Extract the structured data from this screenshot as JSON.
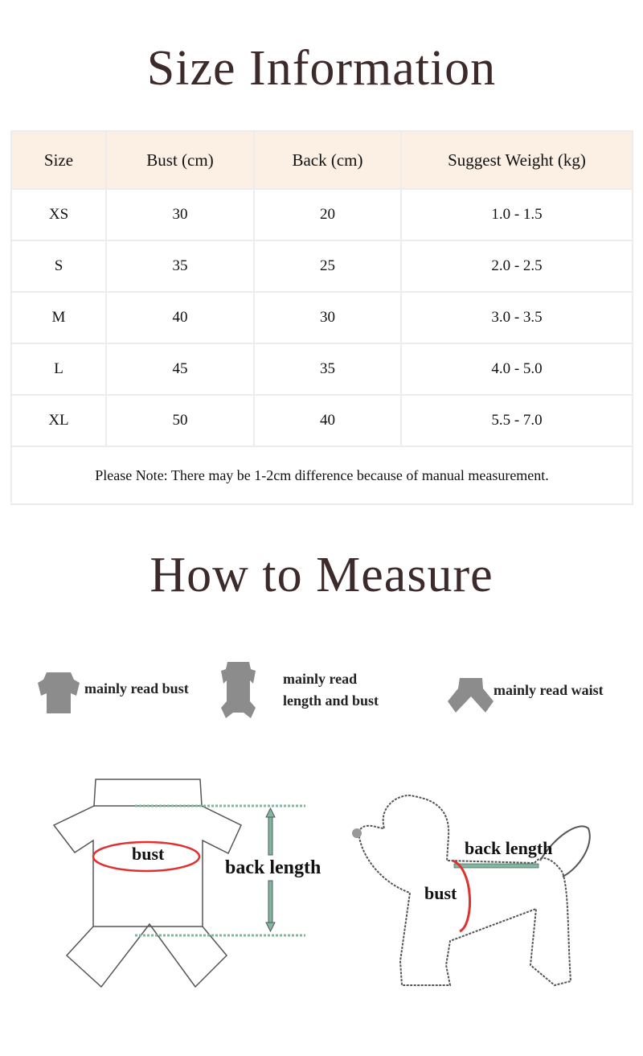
{
  "size_info": {
    "title": "Size Information",
    "headers": [
      "Size",
      "Bust (cm)",
      "Back (cm)",
      "Suggest Weight (kg)"
    ],
    "rows": [
      [
        "XS",
        "30",
        "20",
        "1.0 - 1.5"
      ],
      [
        "S",
        "35",
        "25",
        "2.0 - 2.5"
      ],
      [
        "M",
        "40",
        "30",
        "3.0 - 3.5"
      ],
      [
        "L",
        "45",
        "35",
        "4.0 - 5.0"
      ],
      [
        "XL",
        "50",
        "40",
        "5.5 - 7.0"
      ]
    ],
    "note": "Please Note: There may be 1-2cm difference because of manual measurement."
  },
  "how_to_measure": {
    "title": "How to Measure",
    "legend": [
      {
        "icon": "shirt-icon",
        "label": "mainly read bust"
      },
      {
        "icon": "jumpsuit-icon",
        "label_line1": "mainly read",
        "label_line2": "length and bust"
      },
      {
        "icon": "pants-icon",
        "label": "mainly read waist"
      }
    ],
    "garment_diagram": {
      "bust": "bust",
      "back_length": "back length"
    },
    "dog_diagram": {
      "bust": "bust",
      "back_length": "back length"
    },
    "colors": {
      "bust": "#e03030",
      "back_length": "#7fb89a",
      "icon": "#8c8c8c"
    }
  }
}
